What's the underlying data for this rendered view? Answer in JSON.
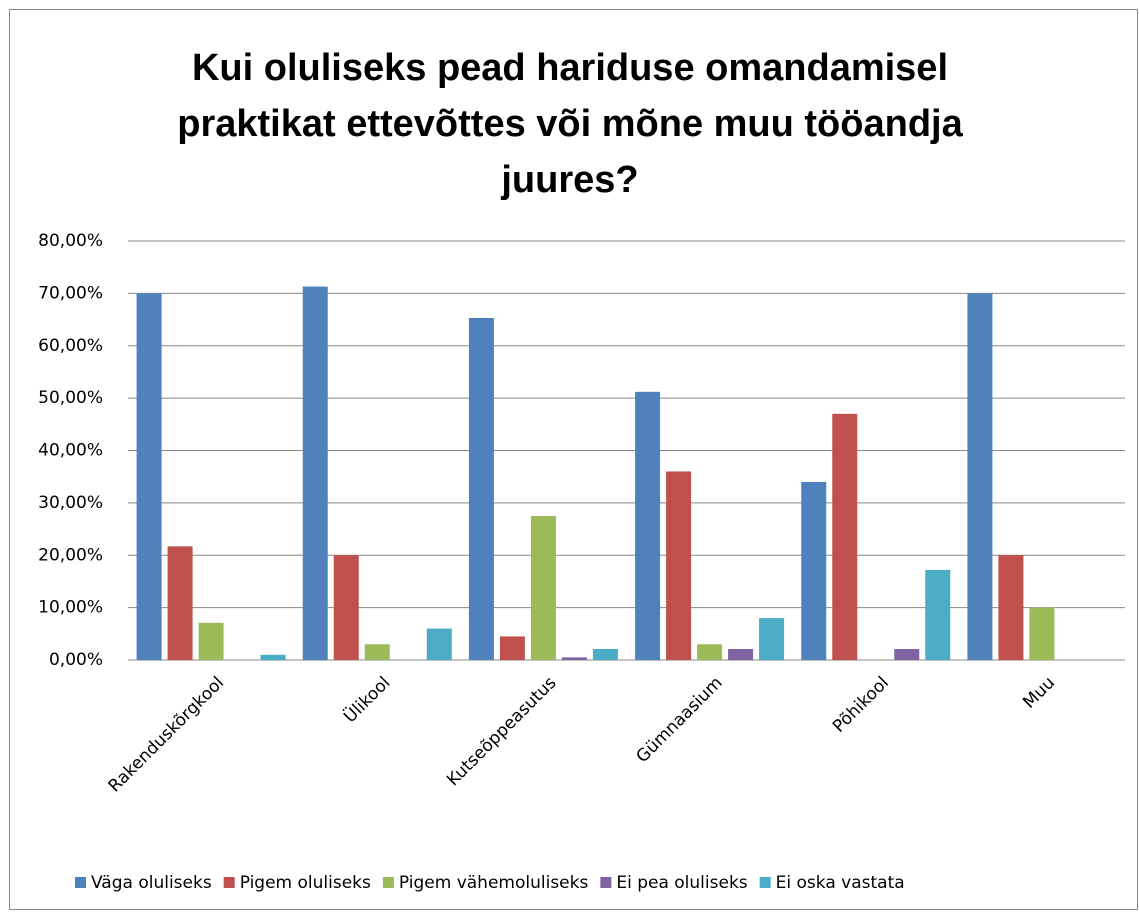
{
  "chart_data": {
    "type": "bar",
    "title": "Kui oluliseks pead hariduse omandamisel praktikat ettevõttes või mõne muu tööandja juures?",
    "categories": [
      "Rakenduskõrgkool",
      "Ülikool",
      "Kutseõppeasutus",
      "Gümnaasium",
      "Põhikool",
      "Muu"
    ],
    "series": [
      {
        "name": "Väga oluliseks",
        "color": "#4f81bd",
        "values": [
          70,
          71.3,
          65.3,
          51.2,
          34,
          70
        ]
      },
      {
        "name": "Pigem oluliseks",
        "color": "#c0504d",
        "values": [
          21.7,
          20,
          4.5,
          36,
          47,
          20
        ]
      },
      {
        "name": "Pigem vähemoluliseks",
        "color": "#9bbb59",
        "values": [
          7.1,
          3,
          27.5,
          3,
          0,
          10
        ]
      },
      {
        "name": "Ei pea oluliseks",
        "color": "#8064a2",
        "values": [
          0,
          0,
          0.5,
          2.1,
          2.1,
          0
        ]
      },
      {
        "name": "Ei oska vastata",
        "color": "#4bacc6",
        "values": [
          1,
          6,
          2.1,
          8,
          17.2,
          0
        ]
      }
    ],
    "ylim": [
      0,
      80
    ],
    "yticks": [
      {
        "value": 0,
        "label": "0,00%"
      },
      {
        "value": 10,
        "label": "10,00%"
      },
      {
        "value": 20,
        "label": "20,00%"
      },
      {
        "value": 30,
        "label": "30,00%"
      },
      {
        "value": 40,
        "label": "40,00%"
      },
      {
        "value": 50,
        "label": "50,00%"
      },
      {
        "value": 60,
        "label": "60,00%"
      },
      {
        "value": 70,
        "label": "70,00%"
      },
      {
        "value": 80,
        "label": "80,00%"
      }
    ],
    "grid": true,
    "legend": "bottom"
  }
}
